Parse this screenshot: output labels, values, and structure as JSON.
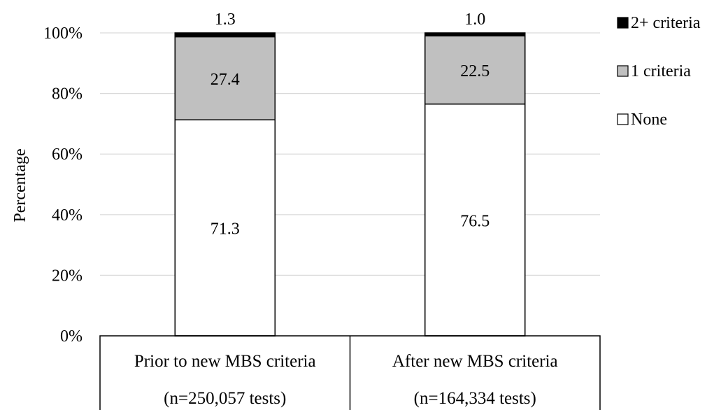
{
  "chart_data": {
    "type": "bar",
    "stacked": true,
    "ylabel": "Percentage",
    "xlabel": "",
    "ylim": [
      0,
      100
    ],
    "y_ticks": [
      "0%",
      "20%",
      "40%",
      "60%",
      "80%",
      "100%"
    ],
    "grid": true,
    "legend_position": "top-right",
    "categories": [
      {
        "line1": "Prior to new MBS criteria",
        "line2": "(n=250,057 tests)"
      },
      {
        "line1": "After new MBS criteria",
        "line2": "(n=164,334 tests)"
      }
    ],
    "series": [
      {
        "name": "None",
        "color": "#ffffff",
        "values": [
          71.3,
          76.5
        ],
        "labels": [
          "71.3",
          "76.5"
        ]
      },
      {
        "name": "1 criteria",
        "color": "#c0c0c0",
        "values": [
          27.4,
          22.5
        ],
        "labels": [
          "27.4",
          "22.5"
        ]
      },
      {
        "name": "2+ criteria",
        "color": "#000000",
        "values": [
          1.3,
          1.0
        ],
        "labels": [
          "1.3",
          "1.0"
        ]
      }
    ],
    "legend_order": [
      "2+ criteria",
      "1 criteria",
      "None"
    ]
  }
}
